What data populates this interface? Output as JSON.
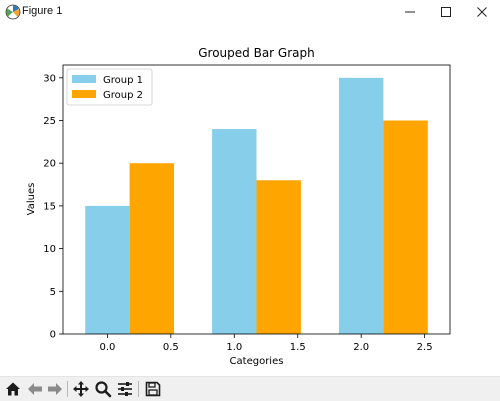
{
  "window": {
    "title": "Figure 1"
  },
  "toolbar": {
    "buttons": [
      {
        "name": "home-button",
        "icon": "home-icon"
      },
      {
        "name": "back-button",
        "icon": "arrow-left-icon"
      },
      {
        "name": "forward-button",
        "icon": "arrow-right-icon"
      },
      {
        "name": "pan-button",
        "icon": "move-icon"
      },
      {
        "name": "zoom-button",
        "icon": "magnifier-icon"
      },
      {
        "name": "configure-subplots-button",
        "icon": "sliders-icon"
      },
      {
        "name": "save-button",
        "icon": "floppy-disk-icon"
      }
    ]
  },
  "chart_data": {
    "type": "bar",
    "title": "Grouped Bar Graph",
    "xlabel": "Categories",
    "ylabel": "Values",
    "xlim": [
      -0.35,
      2.7
    ],
    "ylim": [
      0,
      31.5
    ],
    "bar_width": 0.35,
    "xticks": [
      "0.0",
      "0.5",
      "1.0",
      "1.5",
      "2.0",
      "2.5"
    ],
    "yticks": [
      "0",
      "5",
      "10",
      "15",
      "20",
      "25",
      "30"
    ],
    "series": [
      {
        "name": "Group 1",
        "color": "#87CEEB",
        "x": [
          0,
          1,
          2
        ],
        "values": [
          15,
          24,
          30
        ]
      },
      {
        "name": "Group 2",
        "color": "#FFA500",
        "x": [
          0.35,
          1.35,
          2.35
        ],
        "values": [
          20,
          18,
          25
        ]
      }
    ],
    "legend": "upper left",
    "grid": false
  }
}
